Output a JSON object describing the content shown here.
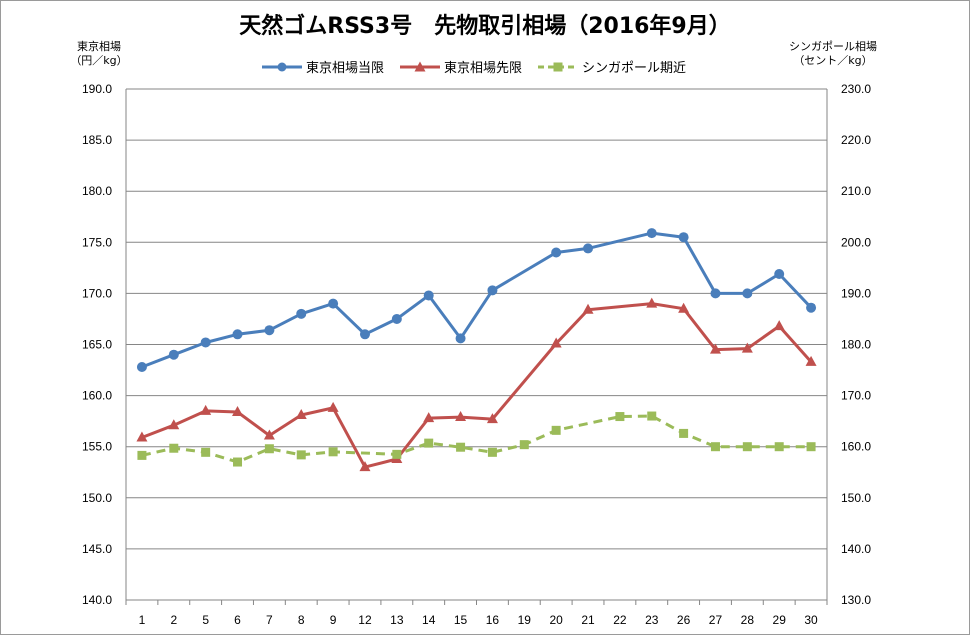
{
  "chart_data": {
    "type": "line",
    "title": "天然ゴムRSS3号　先物取引相場（2016年9月）",
    "ylabel_left": [
      "東京相場",
      "（円／kg）"
    ],
    "ylabel_right": [
      "シンガポール相場",
      "（セント／kg）"
    ],
    "categories": [
      "1",
      "2",
      "5",
      "6",
      "7",
      "8",
      "9",
      "12",
      "13",
      "14",
      "15",
      "16",
      "19",
      "20",
      "21",
      "22",
      "23",
      "26",
      "27",
      "28",
      "29",
      "30"
    ],
    "ylim_left": [
      140,
      190
    ],
    "ylim_right": [
      130,
      230
    ],
    "yticks_left": [
      "140.0",
      "145.0",
      "150.0",
      "155.0",
      "160.0",
      "165.0",
      "170.0",
      "175.0",
      "180.0",
      "185.0",
      "190.0"
    ],
    "yticks_right": [
      "130.0",
      "140.0",
      "150.0",
      "160.0",
      "170.0",
      "180.0",
      "190.0",
      "200.0",
      "210.0",
      "220.0",
      "230.0"
    ],
    "grid": true,
    "legend_position": "top",
    "series": [
      {
        "name": "東京相場当限",
        "axis": "left",
        "color": "#4a7ebb",
        "marker": "circle",
        "dash": false,
        "values": [
          162.8,
          164.0,
          165.2,
          166.0,
          166.4,
          168.0,
          169.0,
          166.0,
          167.5,
          169.8,
          165.6,
          170.3,
          null,
          174.0,
          174.4,
          null,
          175.9,
          175.5,
          170.0,
          170.0,
          171.9,
          168.6
        ]
      },
      {
        "name": "東京相場先限",
        "axis": "left",
        "color": "#c0504d",
        "marker": "triangle",
        "dash": false,
        "values": [
          155.9,
          157.1,
          158.5,
          158.4,
          156.1,
          158.1,
          158.8,
          153.0,
          153.8,
          157.8,
          157.9,
          157.7,
          null,
          165.1,
          168.4,
          null,
          169.0,
          168.5,
          164.5,
          164.6,
          166.8,
          163.3
        ]
      },
      {
        "name": "シンガポール期近",
        "axis": "right",
        "color": "#9bbb59",
        "marker": "square",
        "dash": true,
        "values": [
          158.3,
          159.7,
          158.9,
          157.0,
          159.6,
          158.4,
          159.0,
          null,
          158.5,
          160.7,
          159.9,
          158.9,
          160.4,
          163.2,
          null,
          165.9,
          166.0,
          162.6,
          160.0,
          160.0,
          160.0,
          160.0
        ]
      }
    ]
  }
}
